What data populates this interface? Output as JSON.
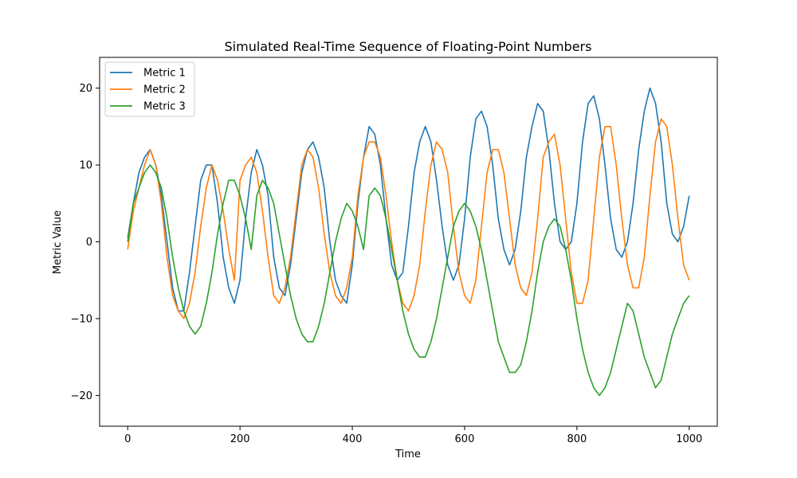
{
  "chart_data": {
    "type": "line",
    "title": "Simulated Real-Time Sequence of Floating-Point Numbers",
    "xlabel": "Time",
    "ylabel": "Metric Value",
    "xlim": [
      -50,
      1050
    ],
    "ylim": [
      -24,
      24
    ],
    "xticks": [
      0,
      200,
      400,
      600,
      800,
      1000
    ],
    "yticks": [
      -20,
      -10,
      0,
      10,
      20
    ],
    "legend_placement": "top-left",
    "grid": false,
    "series": [
      {
        "name": "Metric 1",
        "color": "#1f77b4",
        "x": [
          0,
          10,
          20,
          30,
          40,
          50,
          60,
          70,
          80,
          90,
          100,
          110,
          120,
          130,
          140,
          150,
          160,
          170,
          180,
          190,
          200,
          210,
          220,
          230,
          240,
          250,
          260,
          270,
          280,
          290,
          300,
          310,
          320,
          330,
          340,
          350,
          360,
          370,
          380,
          390,
          400,
          410,
          420,
          430,
          440,
          450,
          460,
          470,
          480,
          490,
          500,
          510,
          520,
          530,
          540,
          550,
          560,
          570,
          580,
          590,
          600,
          610,
          620,
          630,
          640,
          650,
          660,
          670,
          680,
          690,
          700,
          710,
          720,
          730,
          740,
          750,
          760,
          770,
          780,
          790,
          800,
          810,
          820,
          830,
          840,
          850,
          860,
          870,
          880,
          890,
          900,
          910,
          920,
          930,
          940,
          950,
          960,
          970,
          980,
          990,
          1000
        ],
        "values": [
          0.5,
          5,
          9,
          11,
          12,
          10,
          6,
          0,
          -6,
          -9,
          -9,
          -4,
          2,
          8,
          10,
          10,
          5,
          -2,
          -6,
          -8,
          -5,
          3,
          9,
          12,
          10,
          6,
          -2,
          -6,
          -7,
          -3,
          3,
          9,
          12,
          13,
          11,
          7,
          0,
          -5,
          -7,
          -8,
          -3,
          5,
          11,
          15,
          14,
          10,
          3,
          -3,
          -5,
          -4,
          2,
          9,
          13,
          15,
          13,
          8,
          2,
          -3,
          -5,
          -3,
          3,
          11,
          16,
          17,
          15,
          10,
          3,
          -1,
          -3,
          -1,
          4,
          11,
          15,
          18,
          17,
          12,
          5,
          0,
          -1,
          0,
          5,
          13,
          18,
          19,
          16,
          10,
          3,
          -1,
          -2,
          0,
          5,
          12,
          17,
          20,
          18,
          13,
          5,
          1,
          0,
          2,
          6
        ]
      },
      {
        "name": "Metric 2",
        "color": "#ff7f0e",
        "x": [
          0,
          10,
          20,
          30,
          40,
          50,
          60,
          70,
          80,
          90,
          100,
          110,
          120,
          130,
          140,
          150,
          160,
          170,
          180,
          190,
          200,
          210,
          220,
          230,
          240,
          250,
          260,
          270,
          280,
          290,
          300,
          310,
          320,
          330,
          340,
          350,
          360,
          370,
          380,
          390,
          400,
          410,
          420,
          430,
          440,
          450,
          460,
          470,
          480,
          490,
          500,
          510,
          520,
          530,
          540,
          550,
          560,
          570,
          580,
          590,
          600,
          610,
          620,
          630,
          640,
          650,
          660,
          670,
          680,
          690,
          700,
          710,
          720,
          730,
          740,
          750,
          760,
          770,
          780,
          790,
          800,
          810,
          820,
          830,
          840,
          850,
          860,
          870,
          880,
          890,
          900,
          910,
          920,
          930,
          940,
          950,
          960,
          970,
          980,
          990,
          1000
        ],
        "values": [
          -1,
          4,
          7,
          10,
          12,
          10,
          5,
          -2,
          -7,
          -9,
          -10,
          -8,
          -4,
          2,
          7,
          10,
          8,
          4,
          -1,
          -5,
          8,
          10,
          11,
          9,
          4,
          -2,
          -7,
          -8,
          -6,
          -2,
          4,
          10,
          12,
          11,
          7,
          1,
          -4,
          -7,
          -8,
          -6,
          -2,
          6,
          11,
          13,
          13,
          11,
          6,
          0,
          -5,
          -8,
          -9,
          -7,
          -3,
          4,
          10,
          13,
          12,
          9,
          2,
          -4,
          -7,
          -8,
          -5,
          2,
          9,
          12,
          12,
          9,
          3,
          -3,
          -6,
          -7,
          -4,
          3,
          11,
          13,
          14,
          10,
          3,
          -4,
          -8,
          -8,
          -5,
          3,
          11,
          15,
          15,
          10,
          3,
          -3,
          -6,
          -6,
          -2,
          6,
          13,
          16,
          15,
          10,
          3,
          -3,
          -5
        ]
      },
      {
        "name": "Metric 3",
        "color": "#2ca02c",
        "x": [
          0,
          10,
          20,
          30,
          40,
          50,
          60,
          70,
          80,
          90,
          100,
          110,
          120,
          130,
          140,
          150,
          160,
          170,
          180,
          190,
          200,
          210,
          220,
          230,
          240,
          250,
          260,
          270,
          280,
          290,
          300,
          310,
          320,
          330,
          340,
          350,
          360,
          370,
          380,
          390,
          400,
          410,
          420,
          430,
          440,
          450,
          460,
          470,
          480,
          490,
          500,
          510,
          520,
          530,
          540,
          550,
          560,
          570,
          580,
          590,
          600,
          610,
          620,
          630,
          640,
          650,
          660,
          670,
          680,
          690,
          700,
          710,
          720,
          730,
          740,
          750,
          760,
          770,
          780,
          790,
          800,
          810,
          820,
          830,
          840,
          850,
          860,
          870,
          880,
          890,
          900,
          910,
          920,
          930,
          940,
          950,
          960,
          970,
          980,
          990,
          1000
        ],
        "values": [
          0,
          5,
          7,
          9,
          10,
          9,
          7,
          3,
          -2,
          -6,
          -9,
          -11,
          -12,
          -11,
          -8,
          -4,
          1,
          5,
          8,
          8,
          6,
          3,
          -1,
          6,
          8,
          7,
          5,
          1,
          -3,
          -7,
          -10,
          -12,
          -13,
          -13,
          -11,
          -8,
          -4,
          0,
          3,
          5,
          4,
          2,
          -1,
          6,
          7,
          6,
          3,
          -1,
          -5,
          -9,
          -12,
          -14,
          -15,
          -15,
          -13,
          -10,
          -6,
          -2,
          2,
          4,
          5,
          4,
          2,
          -1,
          -5,
          -9,
          -13,
          -15,
          -17,
          -17,
          -16,
          -13,
          -9,
          -4,
          0,
          2,
          3,
          2,
          -1,
          -5,
          -10,
          -14,
          -17,
          -19,
          -20,
          -19,
          -17,
          -14,
          -11,
          -8,
          -9,
          -12,
          -15,
          -17,
          -19,
          -18,
          -15,
          -12,
          -10,
          -8,
          -7
        ]
      }
    ]
  }
}
